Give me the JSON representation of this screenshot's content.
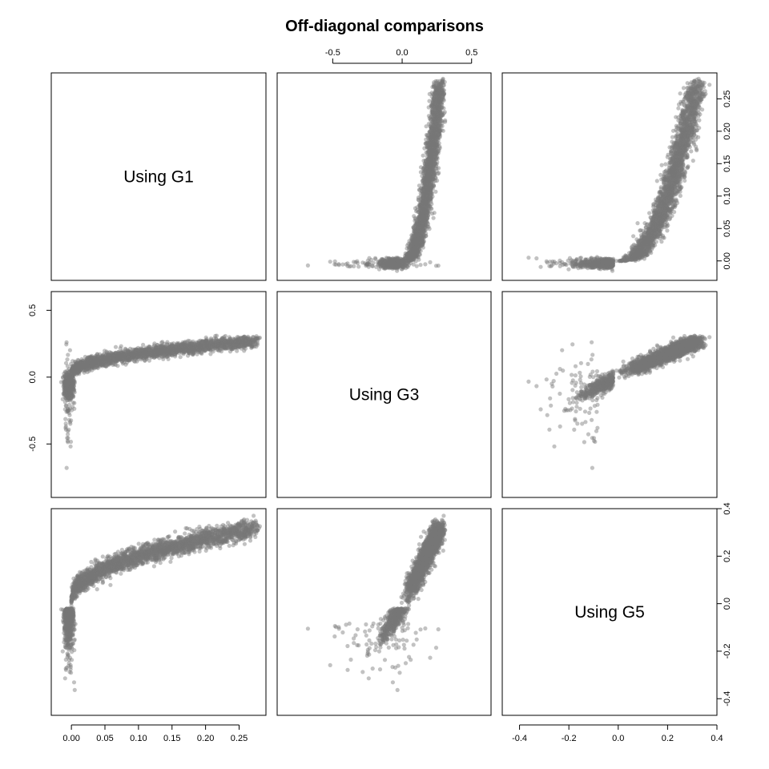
{
  "title": "Off-diagonal comparisons",
  "diagonal_labels": [
    "Using G1",
    "Using G3",
    "Using G5"
  ],
  "chart_data": {
    "type": "scatter",
    "layout": "pairs-matrix",
    "title": "Off-diagonal comparisons",
    "grid": false,
    "point_color": "#777777",
    "variables": [
      {
        "label": "Using G1",
        "range": [
          -0.03,
          0.29
        ],
        "ticks": [
          0.0,
          0.05,
          0.1,
          0.15,
          0.2,
          0.25
        ],
        "tick_labels": [
          "0.00",
          "0.05",
          "0.10",
          "0.15",
          "0.20",
          "0.25"
        ]
      },
      {
        "label": "Using G3",
        "range": [
          -0.9,
          0.64
        ],
        "ticks": [
          -0.5,
          0.0,
          0.5
        ],
        "tick_labels": [
          "-0.5",
          "0.0",
          "0.5"
        ]
      },
      {
        "label": "Using G5",
        "range": [
          -0.47,
          0.4
        ],
        "ticks": [
          -0.4,
          -0.2,
          0.0,
          0.2,
          0.4
        ],
        "tick_labels": [
          "-0.4",
          "-0.2",
          "0.0",
          "0.2",
          "0.4"
        ]
      }
    ],
    "n_points": 3000,
    "relationships": [
      {
        "x": "Using G3",
        "y": "Using G1",
        "description": "near-zero G1 for G3 below 0, rising steeply above 0"
      },
      {
        "x": "Using G5",
        "y": "Using G1",
        "description": "flat near 0 for negative G5, convex increase for positive G5"
      },
      {
        "x": "Using G1",
        "y": "Using G3",
        "description": "vertical spread at G1 near 0, concave increase afterwards"
      },
      {
        "x": "Using G5",
        "y": "Using G3",
        "description": "tight linear band for positive values, diffuse cloud for negative values"
      },
      {
        "x": "Using G1",
        "y": "Using G5",
        "description": "vertical spread at G1 near 0, concave increase afterwards"
      },
      {
        "x": "Using G3",
        "y": "Using G5",
        "description": "tight linear band for positive values, diffuse cloud for negative values"
      }
    ]
  }
}
